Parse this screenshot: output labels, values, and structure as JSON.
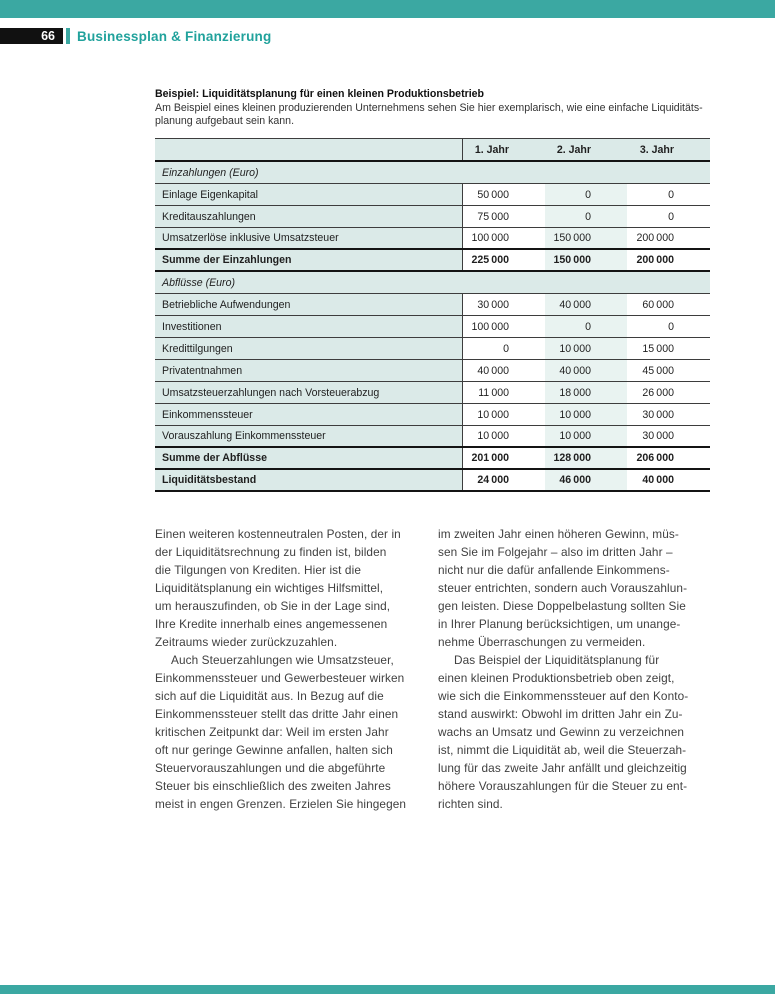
{
  "colors": {
    "accent": "#3BA8A2",
    "heading_text": "#21A29C",
    "table_tint": "#DBEAE8",
    "column_highlight": "#E9F3F1"
  },
  "page": {
    "number": "66",
    "header_title": "Businessplan & Finanzierung"
  },
  "table": {
    "title": "Beispiel: Liquiditätsplanung für einen kleinen Produktionsbetrieb",
    "subtitle_lines": [
      "Am Beispiel eines kleinen produzierenden Unternehmens sehen Sie hier exemplarisch, wie eine einfache Liquiditäts-",
      "planung aufgebaut sein kann."
    ],
    "columns": [
      "1. Jahr",
      "2. Jahr",
      "3. Jahr"
    ],
    "rows": [
      {
        "type": "section",
        "label": "Einzahlungen (Euro)"
      },
      {
        "type": "data",
        "label": "Einlage Eigenkapital",
        "values": [
          "50 000",
          "0",
          "0"
        ]
      },
      {
        "type": "data",
        "label": "Kreditauszahlungen",
        "values": [
          "75 000",
          "0",
          "0"
        ]
      },
      {
        "type": "data",
        "label": "Umsatzerlöse inklusive Umsatzsteuer",
        "values": [
          "100 000",
          "150 000",
          "200 000"
        ]
      },
      {
        "type": "total",
        "label": "Summe der Einzahlungen",
        "values": [
          "225 000",
          "150 000",
          "200 000"
        ]
      },
      {
        "type": "section",
        "label": "Abflüsse (Euro)"
      },
      {
        "type": "data",
        "label": "Betriebliche Aufwendungen",
        "values": [
          "30 000",
          "40 000",
          "60 000"
        ]
      },
      {
        "type": "data",
        "label": "Investitionen",
        "values": [
          "100 000",
          "0",
          "0"
        ]
      },
      {
        "type": "data",
        "label": "Kredittilgungen",
        "values": [
          "0",
          "10 000",
          "15 000"
        ]
      },
      {
        "type": "data",
        "label": "Privatentnahmen",
        "values": [
          "40 000",
          "40 000",
          "45 000"
        ]
      },
      {
        "type": "data",
        "label": "Umsatzsteuerzahlungen nach Vorsteuerabzug",
        "values": [
          "11 000",
          "18 000",
          "26 000"
        ]
      },
      {
        "type": "data",
        "label": "Einkommenssteuer",
        "values": [
          "10 000",
          "10 000",
          "30 000"
        ]
      },
      {
        "type": "data",
        "label": "Vorauszahlung Einkommenssteuer",
        "values": [
          "10 000",
          "10 000",
          "30 000"
        ]
      },
      {
        "type": "total",
        "label": "Summe der Abflüsse",
        "values": [
          "201 000",
          "128 000",
          "206 000"
        ]
      },
      {
        "type": "total",
        "label": "Liquiditätsbestand",
        "values": [
          "24 000",
          "46 000",
          "40 000"
        ]
      }
    ]
  },
  "article": {
    "left_paragraphs": [
      {
        "indent": false,
        "lines": [
          "Einen weiteren kostenneutralen Posten, der in",
          "der Liquiditätsrechnung zu finden ist, bilden",
          "die Tilgungen von Krediten. Hier ist die",
          "Liquiditätsplanung ein wichtiges Hilfsmittel,",
          "um herauszufinden, ob Sie in der Lage sind,",
          "Ihre Kredite innerhalb eines angemessenen",
          "Zeitraums wieder zurückzuzahlen."
        ]
      },
      {
        "indent": true,
        "lines": [
          "Auch Steuerzahlungen wie Umsatzsteuer,",
          "Einkommenssteuer und Gewerbesteuer wirken",
          "sich auf die Liquidität aus. In Bezug auf die",
          "Einkommenssteuer stellt das dritte Jahr einen",
          "kritischen Zeitpunkt dar: Weil im ersten Jahr",
          "oft nur geringe Gewinne anfallen, halten sich",
          "Steuervorauszahlungen und die abgeführte",
          "Steuer bis einschließlich des zweiten Jahres",
          "meist in engen Grenzen. Erzielen Sie hingegen"
        ]
      }
    ],
    "right_paragraphs": [
      {
        "indent": false,
        "lines": [
          "im zweiten Jahr einen höheren Gewinn, müs-",
          "sen Sie im Folgejahr – also im dritten Jahr –",
          "nicht nur die dafür anfallende Einkommens-",
          "steuer entrichten, sondern auch Vorauszahlun-",
          "gen leisten. Diese Doppelbelastung sollten Sie",
          "in Ihrer Planung berücksichtigen, um unange-",
          "nehme Überraschungen zu vermeiden."
        ]
      },
      {
        "indent": true,
        "lines": [
          "Das Beispiel der Liquiditätsplanung für",
          "einen kleinen Produktionsbetrieb oben zeigt,",
          "wie sich die Einkommenssteuer auf den Konto-",
          "stand auswirkt: Obwohl im dritten Jahr ein Zu-",
          "wachs an Umsatz und Gewinn zu verzeichnen",
          "ist, nimmt die Liquidität ab, weil die Steuerzah-",
          "lung für das zweite Jahr anfällt und gleichzeitig",
          "höhere Vorauszahlungen für die Steuer zu ent-",
          "richten sind."
        ]
      }
    ]
  }
}
